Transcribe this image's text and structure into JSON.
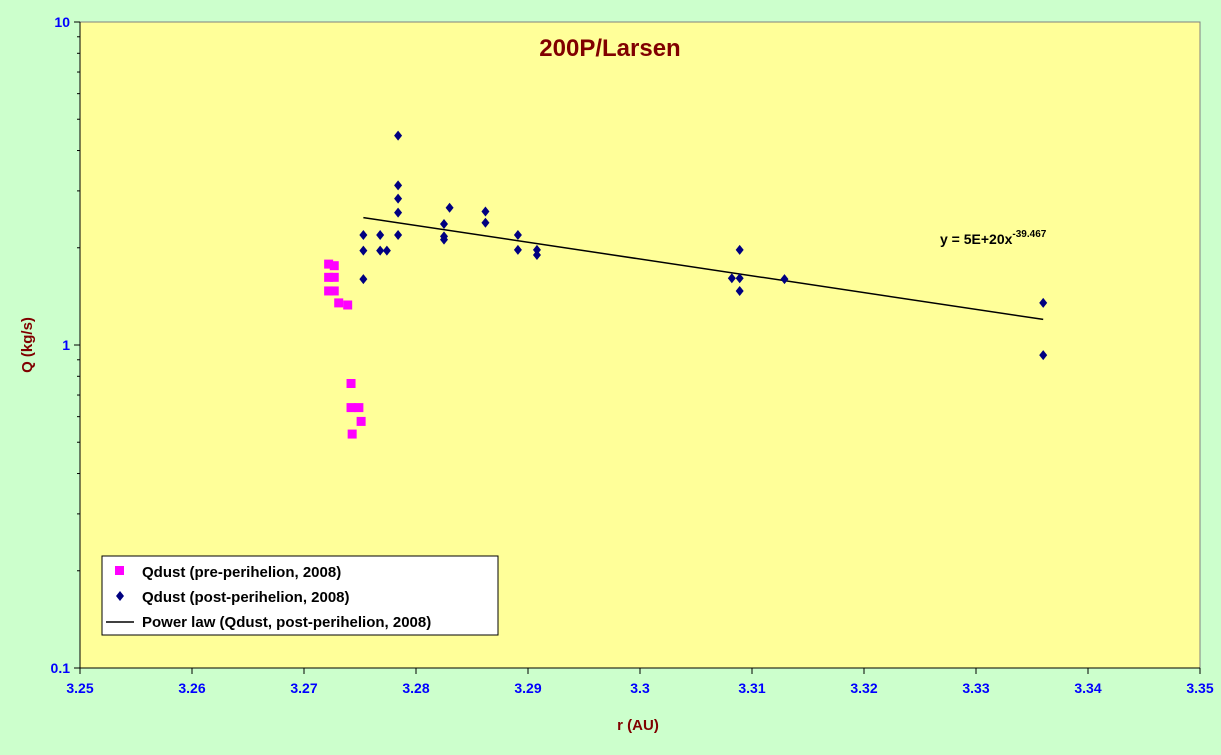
{
  "chart_data": {
    "type": "scatter",
    "title": "200P/Larsen",
    "xlabel": "r (AU)",
    "ylabel": "Q (kg/s)",
    "xlim": [
      3.25,
      3.35
    ],
    "ylim": [
      0.1,
      10
    ],
    "yscale": "log",
    "x_ticks": [
      "3.25",
      "3.26",
      "3.27",
      "3.28",
      "3.29",
      "3.3",
      "3.31",
      "3.32",
      "3.33",
      "3.34",
      "3.35"
    ],
    "y_ticks": [
      "0.1",
      "1",
      "10"
    ],
    "grid": false,
    "legend_position": "bottom-left",
    "colors": {
      "background": "#ccffcc",
      "plot_area": "#ffff99",
      "title": "#800000",
      "axis_label": "#800000",
      "tick_label": "#0000ff",
      "pre": "#ff00ff",
      "post": "#000080",
      "fit": "#000000"
    },
    "series": [
      {
        "name": "Qdust (pre-perihelion, 2008)",
        "marker": "square",
        "points": [
          [
            3.2722,
            1.78
          ],
          [
            3.2727,
            1.76
          ],
          [
            3.2722,
            1.62
          ],
          [
            3.2727,
            1.62
          ],
          [
            3.2722,
            1.47
          ],
          [
            3.2727,
            1.47
          ],
          [
            3.2731,
            1.35
          ],
          [
            3.2739,
            1.33
          ],
          [
            3.2742,
            0.76
          ],
          [
            3.2742,
            0.64
          ],
          [
            3.2749,
            0.64
          ],
          [
            3.2751,
            0.58
          ],
          [
            3.2743,
            0.53
          ]
        ]
      },
      {
        "name": "Qdust (post-perihelion, 2008)",
        "marker": "diamond",
        "points": [
          [
            3.2753,
            2.19
          ],
          [
            3.2753,
            1.96
          ],
          [
            3.2753,
            1.6
          ],
          [
            3.2768,
            2.19
          ],
          [
            3.2768,
            1.96
          ],
          [
            3.2774,
            1.96
          ],
          [
            3.2784,
            4.45
          ],
          [
            3.2784,
            3.12
          ],
          [
            3.2784,
            2.84
          ],
          [
            3.2784,
            2.57
          ],
          [
            3.2784,
            2.19
          ],
          [
            3.2825,
            2.37
          ],
          [
            3.2825,
            2.17
          ],
          [
            3.2825,
            2.12
          ],
          [
            3.283,
            2.66
          ],
          [
            3.2862,
            2.59
          ],
          [
            3.2862,
            2.39
          ],
          [
            3.2891,
            2.19
          ],
          [
            3.2891,
            1.97
          ],
          [
            3.2908,
            1.97
          ],
          [
            3.2908,
            1.9
          ],
          [
            3.3082,
            1.61
          ],
          [
            3.3089,
            1.97
          ],
          [
            3.3089,
            1.61
          ],
          [
            3.3089,
            1.47
          ],
          [
            3.3129,
            1.6
          ],
          [
            3.336,
            1.35
          ],
          [
            3.336,
            0.93
          ]
        ]
      },
      {
        "name": "Power law (Qdust, post-perihelion, 2008)",
        "type": "line",
        "points": [
          [
            3.2753,
            2.48
          ],
          [
            3.336,
            1.2
          ]
        ]
      }
    ],
    "annotations": [
      {
        "base": "y = 5E+20x",
        "sup": "-39.467"
      }
    ]
  }
}
